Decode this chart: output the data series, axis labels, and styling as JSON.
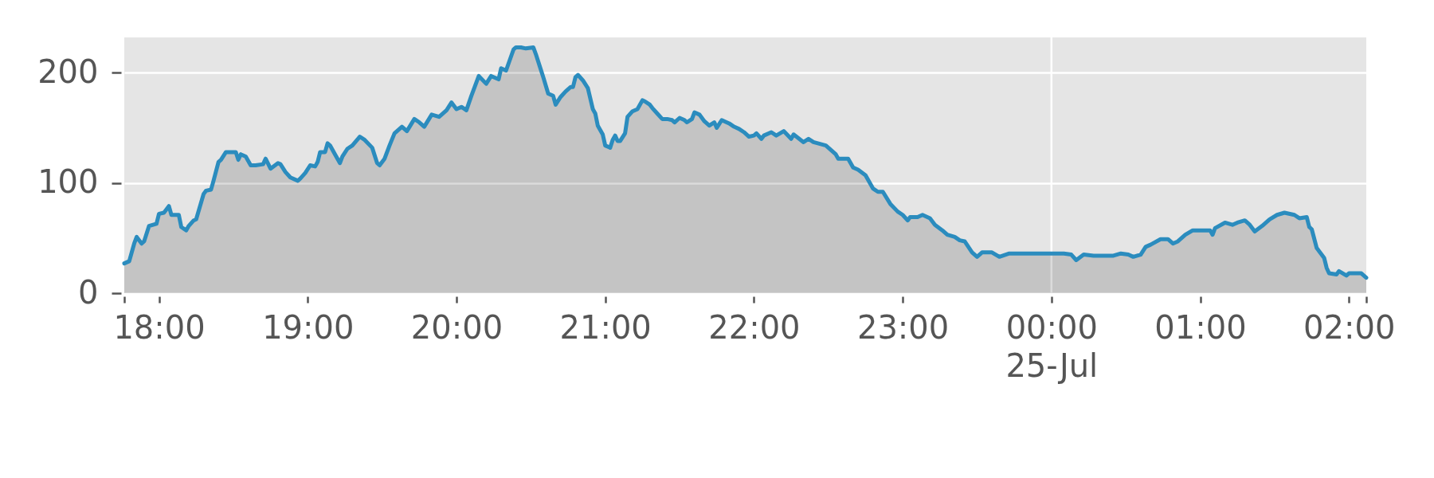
{
  "chart_data": {
    "type": "area",
    "x": [
      "--07-24T17:46",
      "--07-24T17:48",
      "--07-24T17:50",
      "--07-24T17:51",
      "--07-24T17:53",
      "--07-24T17:54",
      "--07-24T17:56",
      "--07-24T17:59",
      "--07-24T18:00",
      "--07-24T18:02",
      "--07-24T18:04",
      "--07-24T18:05",
      "--07-24T18:08",
      "--07-24T18:09",
      "--07-24T18:11",
      "--07-24T18:12",
      "--07-24T18:14",
      "--07-24T18:15",
      "--07-24T18:18",
      "--07-24T18:19",
      "--07-24T18:21",
      "--07-24T18:22",
      "--07-24T18:24",
      "--07-24T18:25",
      "--07-24T18:27",
      "--07-24T18:29",
      "--07-24T18:31",
      "--07-24T18:32",
      "--07-24T18:33",
      "--07-24T18:35",
      "--07-24T18:37",
      "--07-24T18:39",
      "--07-24T18:42",
      "--07-24T18:43",
      "--07-24T18:45",
      "--07-24T18:48",
      "--07-24T18:49",
      "--07-24T18:51",
      "--07-24T18:53",
      "--07-24T18:56",
      "--07-24T18:57",
      "--07-24T18:59",
      "--07-24T19:01",
      "--07-24T19:03",
      "--07-24T19:04",
      "--07-24T19:05",
      "--07-24T19:07",
      "--07-24T19:08",
      "--07-24T19:09",
      "--07-24T19:11",
      "--07-24T19:13",
      "--07-24T19:14",
      "--07-24T19:16",
      "--07-24T19:18",
      "--07-24T19:21",
      "--07-24T19:23",
      "--07-24T19:26",
      "--07-24T19:28",
      "--07-24T19:29",
      "--07-24T19:31",
      "--07-24T19:33",
      "--07-24T19:35",
      "--07-24T19:38",
      "--07-24T19:40",
      "--07-24T19:43",
      "--07-24T19:45",
      "--07-24T19:47",
      "--07-24T19:50",
      "--07-24T19:53",
      "--07-24T19:56",
      "--07-24T19:58",
      "--07-24T20:00",
      "--07-24T20:02",
      "--07-24T20:04",
      "--07-24T20:06",
      "--07-24T20:09",
      "--07-24T20:12",
      "--07-24T20:14",
      "--07-24T20:17",
      "--07-24T20:18",
      "--07-24T20:20",
      "--07-24T20:23",
      "--07-24T20:24",
      "--07-24T20:26",
      "--07-24T20:28",
      "--07-24T20:31",
      "--07-24T20:32",
      "--07-24T20:34",
      "--07-24T20:35",
      "--07-24T20:37",
      "--07-24T20:39",
      "--07-24T20:40",
      "--07-24T20:42",
      "--07-24T20:44",
      "--07-24T20:46",
      "--07-24T20:47",
      "--07-24T20:48",
      "--07-24T20:49",
      "--07-24T20:51",
      "--07-24T20:53",
      "--07-24T20:55",
      "--07-24T20:56",
      "--07-24T20:57",
      "--07-24T20:59",
      "--07-24T21:00",
      "--07-24T21:02",
      "--07-24T21:03",
      "--07-24T21:04",
      "--07-24T21:05",
      "--07-24T21:06",
      "--07-24T21:08",
      "--07-24T21:09",
      "--07-24T21:11",
      "--07-24T21:13",
      "--07-24T21:15",
      "--07-24T21:16",
      "--07-24T21:18",
      "--07-24T21:19",
      "--07-24T21:21",
      "--07-24T21:23",
      "--07-24T21:25",
      "--07-24T21:27",
      "--07-24T21:28",
      "--07-24T21:30",
      "--07-24T21:32",
      "--07-24T21:33",
      "--07-24T21:35",
      "--07-24T21:36",
      "--07-24T21:38",
      "--07-24T21:40",
      "--07-24T21:42",
      "--07-24T21:44",
      "--07-24T21:45",
      "--07-24T21:47",
      "--07-24T21:50",
      "--07-24T21:52",
      "--07-24T21:54",
      "--07-24T21:56",
      "--07-24T21:58",
      "--07-24T22:00",
      "--07-24T22:01",
      "--07-24T22:03",
      "--07-24T22:04",
      "--07-24T22:07",
      "--07-24T22:09",
      "--07-24T22:12",
      "--07-24T22:15",
      "--07-24T22:16",
      "--07-24T22:20",
      "--07-24T22:22",
      "--07-24T22:24",
      "--07-24T22:29",
      "--07-24T22:31",
      "--07-24T22:33",
      "--07-24T22:34",
      "--07-24T22:38",
      "--07-24T22:40",
      "--07-24T22:42",
      "--07-24T22:45",
      "--07-24T22:48",
      "--07-24T22:50",
      "--07-24T22:52",
      "--07-24T22:55",
      "--07-24T22:58",
      "--07-24T23:00",
      "--07-24T23:02",
      "--07-24T23:03",
      "--07-24T23:06",
      "--07-24T23:08",
      "--07-24T23:11",
      "--07-24T23:13",
      "--07-24T23:16",
      "--07-24T23:18",
      "--07-24T23:21",
      "--07-24T23:23",
      "--07-24T23:25",
      "--07-24T23:28",
      "--07-24T23:30",
      "--07-24T23:32",
      "--07-24T23:36",
      "--07-24T23:39",
      "--07-24T23:43",
      "--07-25T00:05",
      "--07-25T00:08",
      "--07-25T00:10",
      "--07-25T00:13",
      "--07-25T00:17",
      "--07-25T00:25",
      "--07-25T00:28",
      "--07-25T00:31",
      "--07-25T00:33",
      "--07-25T00:36",
      "--07-25T00:38",
      "--07-25T00:40",
      "--07-25T00:44",
      "--07-25T00:47",
      "--07-25T00:49",
      "--07-25T00:51",
      "--07-25T00:54",
      "--07-25T00:57",
      "--07-25T01:04",
      "--07-25T01:05",
      "--07-25T01:06",
      "--07-25T01:10",
      "--07-25T01:13",
      "--07-25T01:15",
      "--07-25T01:18",
      "--07-25T01:20",
      "--07-25T01:22",
      "--07-25T01:25",
      "--07-25T01:28",
      "--07-25T01:31",
      "--07-25T01:34",
      "--07-25T01:38",
      "--07-25T01:40",
      "--07-25T01:43",
      "--07-25T01:44",
      "--07-25T01:45",
      "--07-25T01:47",
      "--07-25T01:50",
      "--07-25T01:51",
      "--07-25T01:52",
      "--07-25T01:55",
      "--07-25T01:56",
      "--07-25T01:59",
      "--07-25T02:00",
      "--07-25T02:05",
      "--07-25T02:06",
      "--07-25T02:07"
    ],
    "xlim": [
      "--07-24T17:46",
      "--07-25T02:07"
    ],
    "xticks": [
      {
        "value": "--07-24T17:46",
        "label": null
      },
      {
        "value": "--07-24T18:00",
        "label": "18:00"
      },
      {
        "value": "--07-24T19:00",
        "label": "19:00"
      },
      {
        "value": "--07-24T20:00",
        "label": "20:00"
      },
      {
        "value": "--07-24T21:00",
        "label": "21:00"
      },
      {
        "value": "--07-24T22:00",
        "label": "22:00"
      },
      {
        "value": "--07-24T23:00",
        "label": "23:00"
      },
      {
        "value": "--07-25T00:00",
        "label": "00:00\n25-Jul"
      },
      {
        "value": "--07-25T01:00",
        "label": "01:00"
      },
      {
        "value": "--07-25T02:00",
        "label": "02:00"
      },
      {
        "value": "--07-25T02:07",
        "label": null
      }
    ],
    "ylim": [
      0,
      232
    ],
    "yticks": [
      0,
      100,
      200
    ],
    "grid": "y",
    "ref_lines": [
      {
        "axis": "x",
        "value": "--07-25T00:00",
        "color": "#ffffff"
      }
    ],
    "series": [
      {
        "color": "#2b8cbe",
        "values": [
          27,
          29,
          45,
          51,
          45,
          47,
          61,
          63,
          72,
          73,
          79,
          71,
          71,
          60,
          57,
          61,
          66,
          67,
          90,
          93,
          94,
          102,
          119,
          121,
          128,
          128,
          128,
          121,
          126,
          124,
          116,
          116,
          117,
          122,
          113,
          118,
          117,
          110,
          105,
          102,
          104,
          109,
          116,
          115,
          119,
          128,
          128,
          136,
          134,
          126,
          118,
          124,
          131,
          134,
          142,
          139,
          132,
          118,
          116,
          122,
          134,
          145,
          151,
          147,
          158,
          155,
          151,
          162,
          160,
          166,
          173,
          167,
          169,
          166,
          179,
          197,
          190,
          197,
          194,
          204,
          202,
          221,
          223,
          223,
          222,
          223,
          217,
          203,
          196,
          181,
          179,
          171,
          178,
          183,
          187,
          187,
          196,
          198,
          193,
          186,
          167,
          163,
          152,
          144,
          134,
          132,
          139,
          143,
          138,
          138,
          145,
          160,
          165,
          167,
          175,
          174,
          171,
          168,
          163,
          158,
          158,
          157,
          155,
          159,
          157,
          155,
          158,
          164,
          162,
          156,
          152,
          155,
          150,
          157,
          154,
          151,
          149,
          146,
          142,
          143,
          145,
          140,
          143,
          146,
          143,
          147,
          140,
          144,
          137,
          140,
          137,
          134,
          130,
          126,
          122,
          122,
          114,
          112,
          107,
          95,
          92,
          92,
          81,
          74,
          71,
          66,
          69,
          69,
          71,
          68,
          62,
          57,
          53,
          51,
          48,
          47,
          37,
          33,
          37,
          37,
          33,
          36,
          36,
          35,
          30,
          35,
          34,
          34,
          36,
          35,
          33,
          35,
          42,
          44,
          49,
          49,
          45,
          47,
          53,
          57,
          57,
          53,
          59,
          64,
          62,
          64,
          66,
          62,
          56,
          61,
          67,
          71,
          73,
          71,
          68,
          69,
          60,
          58,
          41,
          32,
          23,
          18,
          17,
          20,
          16,
          18,
          18,
          16,
          14
        ]
      }
    ]
  }
}
